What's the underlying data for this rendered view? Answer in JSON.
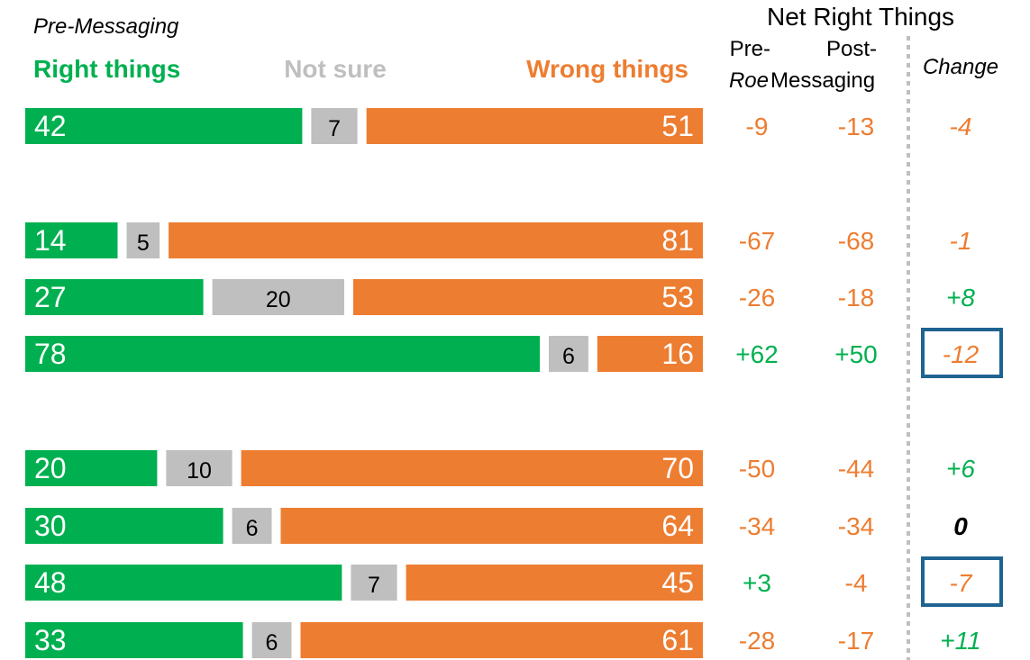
{
  "chart_data": {
    "type": "bar",
    "stacked": true,
    "orientation": "horizontal",
    "title": "Pre-Messaging",
    "legend": [
      "Right things",
      "Not sure",
      "Wrong things"
    ],
    "series": [
      {
        "name": "Right things",
        "values": [
          42,
          14,
          27,
          78,
          20,
          30,
          48,
          33
        ]
      },
      {
        "name": "Not sure",
        "values": [
          7,
          5,
          20,
          6,
          10,
          6,
          7,
          6
        ]
      },
      {
        "name": "Wrong things",
        "values": [
          51,
          81,
          53,
          16,
          70,
          64,
          45,
          61
        ]
      }
    ],
    "table": {
      "title": "Net Right Things",
      "columns": [
        {
          "line1": "Pre-",
          "line2": "Roe"
        },
        {
          "line1": "Post-",
          "line2": "Messaging"
        },
        {
          "line1": "Change"
        }
      ],
      "pre_roe": [
        "-9",
        "-67",
        "-26",
        "+62",
        "-50",
        "-34",
        "+3",
        "-28"
      ],
      "post_messaging": [
        "-13",
        "-68",
        "-18",
        "+50",
        "-44",
        "-34",
        "-4",
        "-17"
      ],
      "change": [
        "-4",
        "-1",
        "+8",
        "-12",
        "+6",
        "0",
        "-7",
        "+11"
      ],
      "highlighted_rows": [
        3,
        6
      ]
    }
  },
  "colors": {
    "right": "#00b050",
    "not_sure": "#bfbfbf",
    "wrong": "#ed7d31",
    "highlight_box": "#1f6391",
    "divider": "#bfbfbf",
    "neutral_text": "#000000"
  }
}
